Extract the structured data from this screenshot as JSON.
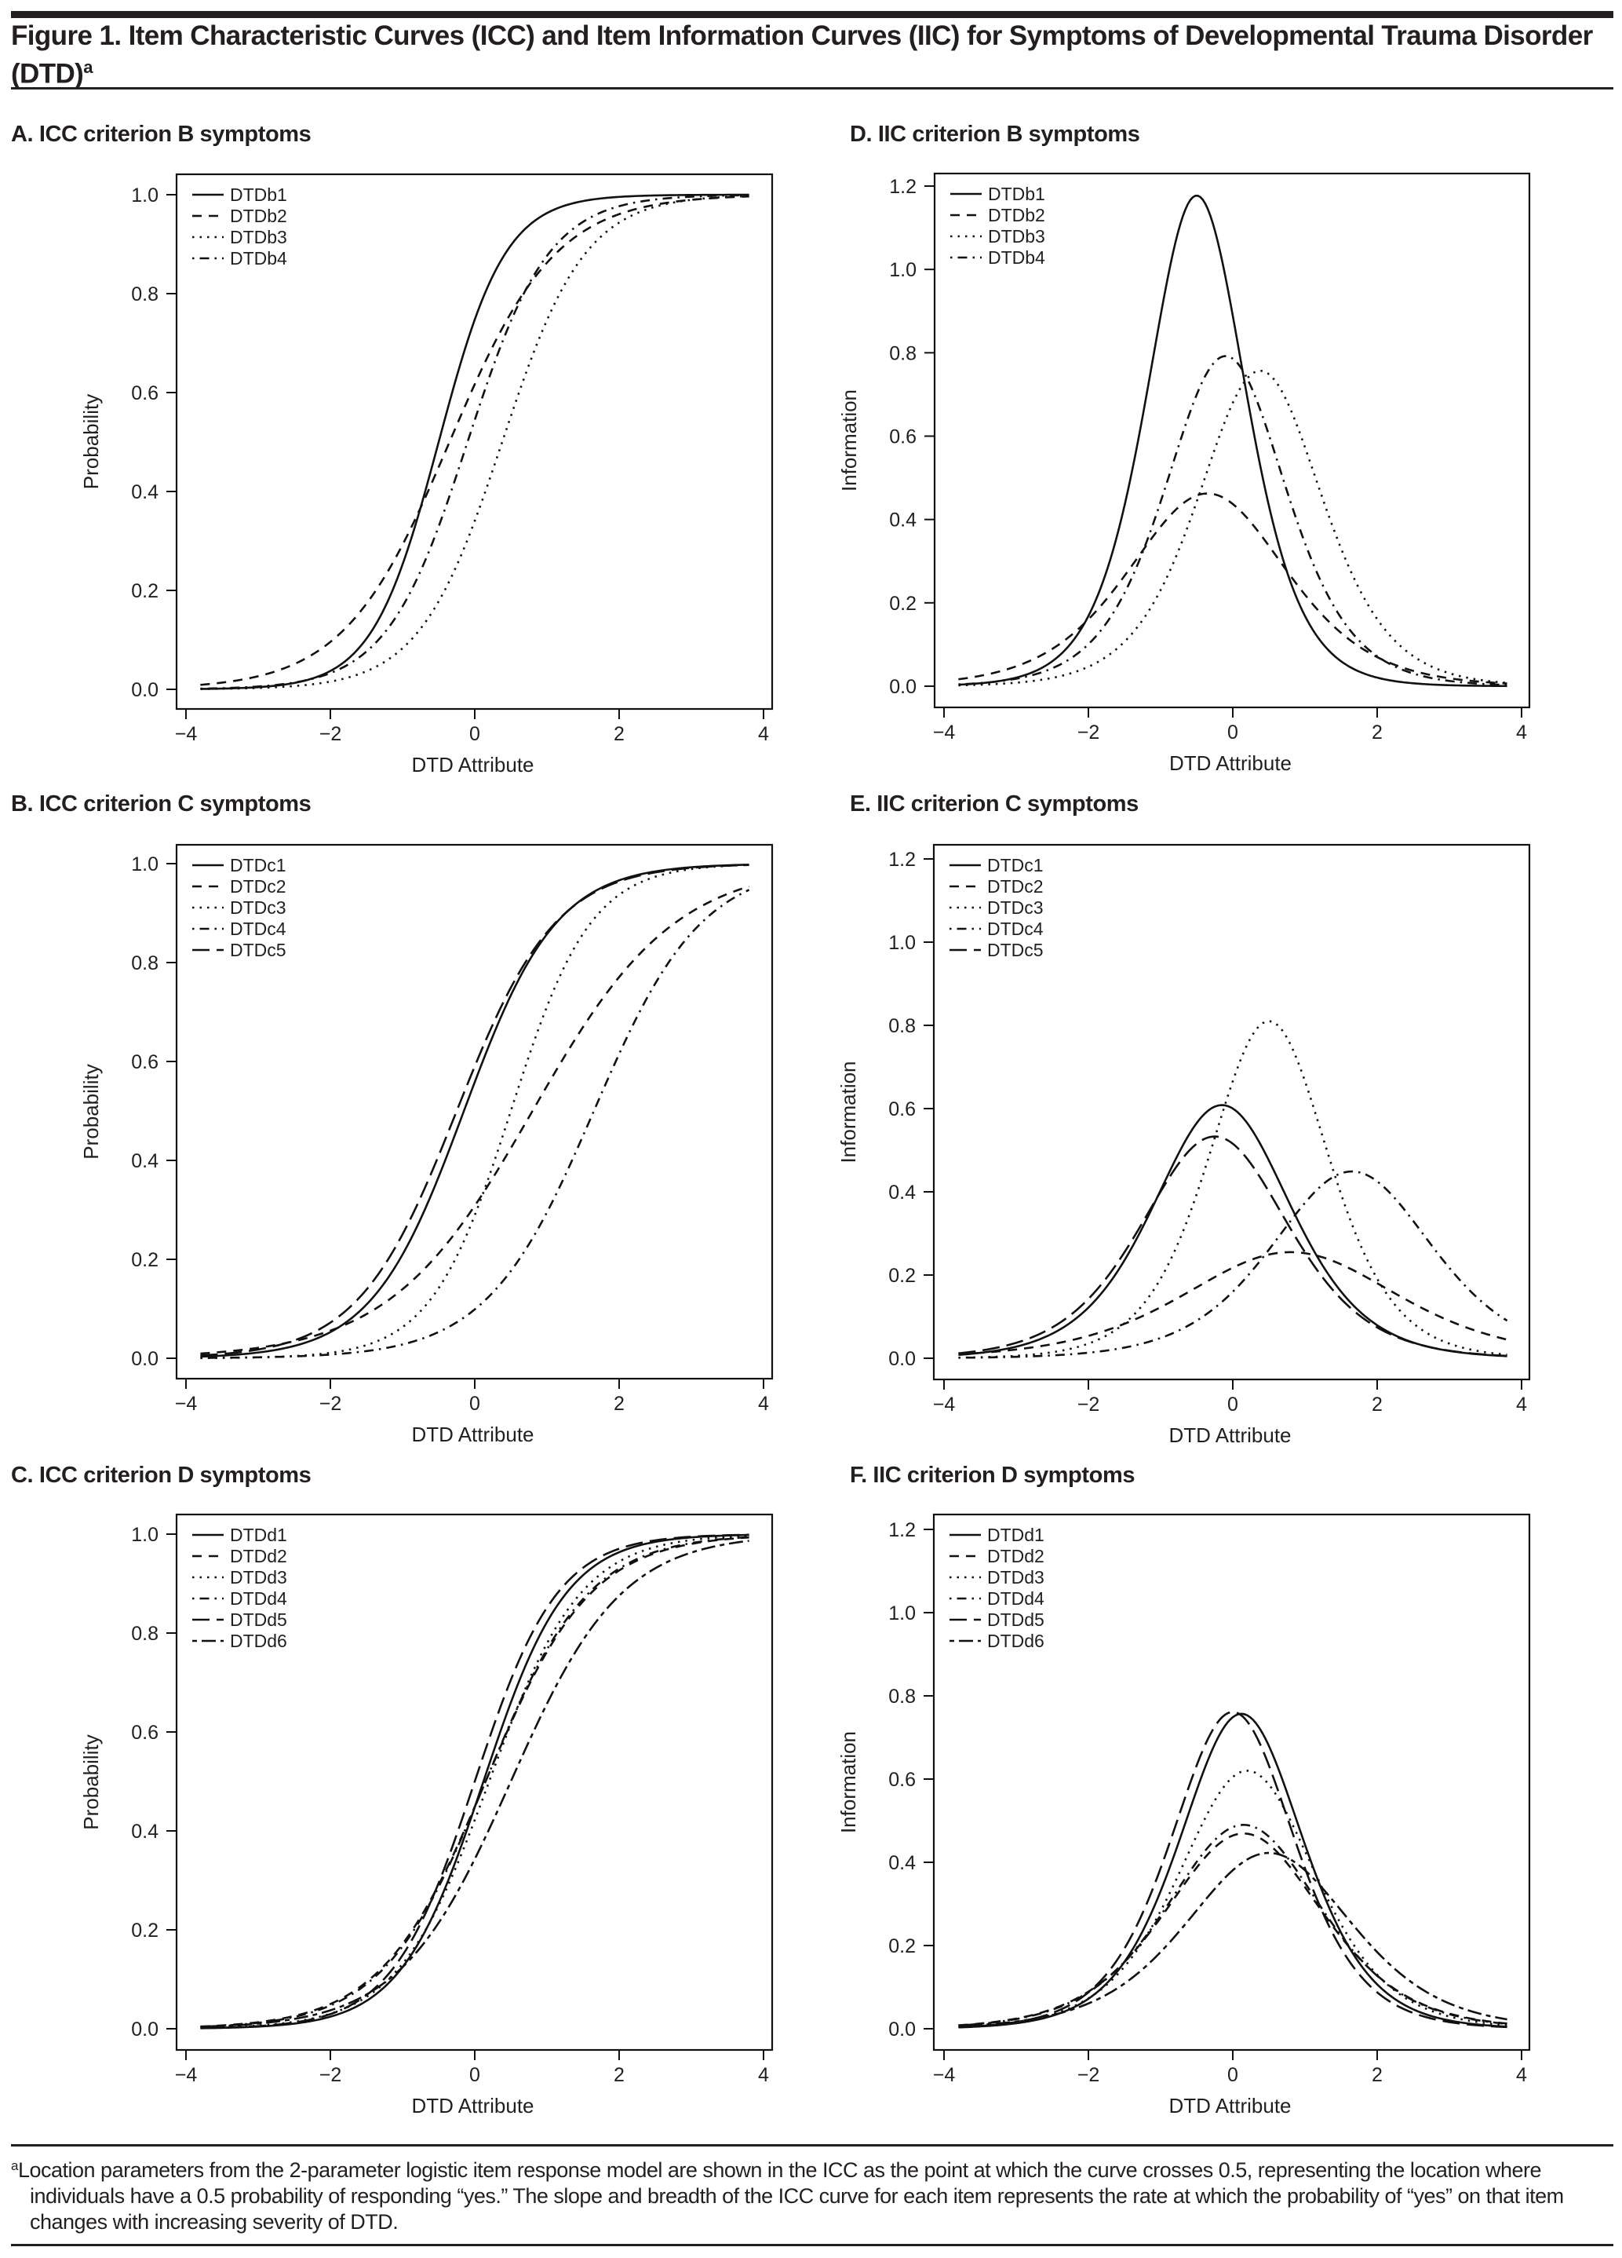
{
  "figure": {
    "title": "Figure 1. Item Characteristic Curves (ICC) and Item Information Curves (IIC) for Symptoms of Developmental Trauma Disorder (DTD)",
    "title_superscript": "a",
    "footnote_marker": "a",
    "footnote": "Location parameters from the 2-parameter logistic item response model are shown in the ICC as the point at which the curve crosses 0.5, representing the location where individuals have a 0.5 probability of responding “yes.” The slope and breadth of the ICC curve for each item represents the rate at which the probability of “yes” on that item changes with increasing severity of DTD."
  },
  "chart_data": [
    {
      "id": "A",
      "type": "line",
      "title": "A. ICC criterion B symptoms",
      "xlabel": "DTD Attribute",
      "ylabel": "Probability",
      "xlim": [
        -4,
        4
      ],
      "ylim": [
        0,
        1.0
      ],
      "xticks": [
        "−4",
        "−2",
        "0",
        "2",
        "4"
      ],
      "yticks": [
        "0.0",
        "0.2",
        "0.4",
        "0.6",
        "0.8",
        "1.0"
      ],
      "xtick_values": [
        -4,
        -2,
        0,
        2,
        4
      ],
      "ytick_values": [
        0,
        0.2,
        0.4,
        0.6,
        0.8,
        1.0
      ],
      "x_range_plotted": [
        -3.8,
        3.8
      ],
      "grid": false,
      "legend_position": "top-left",
      "curve_kind": "icc",
      "series": [
        {
          "name": "DTDb1",
          "line_style": "solid",
          "slope_a": 2.17,
          "location_b": -0.5
        },
        {
          "name": "DTDb2",
          "line_style": "dashed",
          "slope_a": 1.36,
          "location_b": -0.35
        },
        {
          "name": "DTDb3",
          "line_style": "dotted",
          "slope_a": 1.74,
          "location_b": 0.38
        },
        {
          "name": "DTDb4",
          "line_style": "dotdash",
          "slope_a": 1.78,
          "location_b": -0.1
        }
      ]
    },
    {
      "id": "B",
      "type": "line",
      "title": "B. ICC criterion C symptoms",
      "xlabel": "DTD Attribute",
      "ylabel": "Probability",
      "xlim": [
        -4,
        4
      ],
      "ylim": [
        0,
        1.0
      ],
      "xticks": [
        "−4",
        "−2",
        "0",
        "2",
        "4"
      ],
      "yticks": [
        "0.0",
        "0.2",
        "0.4",
        "0.6",
        "0.8",
        "1.0"
      ],
      "xtick_values": [
        -4,
        -2,
        0,
        2,
        4
      ],
      "ytick_values": [
        0,
        0.2,
        0.4,
        0.6,
        0.8,
        1.0
      ],
      "x_range_plotted": [
        -3.8,
        3.8
      ],
      "grid": false,
      "legend_position": "top-left",
      "curve_kind": "icc",
      "series": [
        {
          "name": "DTDc1",
          "line_style": "solid",
          "slope_a": 1.56,
          "location_b": -0.15
        },
        {
          "name": "DTDc2",
          "line_style": "dashed",
          "slope_a": 1.01,
          "location_b": 0.8
        },
        {
          "name": "DTDc3",
          "line_style": "dotted",
          "slope_a": 1.8,
          "location_b": 0.5
        },
        {
          "name": "DTDc4",
          "line_style": "dotdash",
          "slope_a": 1.34,
          "location_b": 1.65
        },
        {
          "name": "DTDc5",
          "line_style": "longdash",
          "slope_a": 1.46,
          "location_b": -0.25
        }
      ]
    },
    {
      "id": "C",
      "type": "line",
      "title": "C. ICC criterion D symptoms",
      "xlabel": "DTD Attribute",
      "ylabel": "Probability",
      "xlim": [
        -4,
        4
      ],
      "ylim": [
        0,
        1.0
      ],
      "xticks": [
        "−4",
        "−2",
        "0",
        "2",
        "4"
      ],
      "yticks": [
        "0.0",
        "0.2",
        "0.4",
        "0.6",
        "0.8",
        "1.0"
      ],
      "xtick_values": [
        -4,
        -2,
        0,
        2,
        4
      ],
      "ytick_values": [
        0,
        0.2,
        0.4,
        0.6,
        0.8,
        1.0
      ],
      "x_range_plotted": [
        -3.8,
        3.8
      ],
      "grid": false,
      "legend_position": "top-left",
      "curve_kind": "icc",
      "series": [
        {
          "name": "DTDd1",
          "line_style": "solid",
          "slope_a": 1.74,
          "location_b": 0.12
        },
        {
          "name": "DTDd2",
          "line_style": "dashed",
          "slope_a": 1.37,
          "location_b": 0.15
        },
        {
          "name": "DTDd3",
          "line_style": "dotted",
          "slope_a": 1.575,
          "location_b": 0.2
        },
        {
          "name": "DTDd4",
          "line_style": "dotdash",
          "slope_a": 1.4,
          "location_b": 0.15
        },
        {
          "name": "DTDd5",
          "line_style": "longdash",
          "slope_a": 1.745,
          "location_b": 0.0
        },
        {
          "name": "DTDd6",
          "line_style": "twodash",
          "slope_a": 1.3,
          "location_b": 0.5
        }
      ]
    },
    {
      "id": "D",
      "type": "line",
      "title": "D. IIC criterion B symptoms",
      "xlabel": "DTD Attribute",
      "ylabel": "Information",
      "xlim": [
        -4,
        4
      ],
      "ylim": [
        0,
        1.2
      ],
      "xticks": [
        "−4",
        "−2",
        "0",
        "2",
        "4"
      ],
      "yticks": [
        "0.0",
        "0.2",
        "0.4",
        "0.6",
        "0.8",
        "1.0",
        "1.2"
      ],
      "xtick_values": [
        -4,
        -2,
        0,
        2,
        4
      ],
      "ytick_values": [
        0,
        0.2,
        0.4,
        0.6,
        0.8,
        1.0,
        1.2
      ],
      "x_range_plotted": [
        -3.8,
        3.8
      ],
      "grid": false,
      "legend_position": "top-left",
      "curve_kind": "iic",
      "series": [
        {
          "name": "DTDb1",
          "line_style": "solid",
          "slope_a": 2.17,
          "location_b": -0.5,
          "peak_information": 1.18
        },
        {
          "name": "DTDb2",
          "line_style": "dashed",
          "slope_a": 1.36,
          "location_b": -0.35,
          "peak_information": 0.46
        },
        {
          "name": "DTDb3",
          "line_style": "dotted",
          "slope_a": 1.74,
          "location_b": 0.38,
          "peak_information": 0.76
        },
        {
          "name": "DTDb4",
          "line_style": "dotdash",
          "slope_a": 1.78,
          "location_b": -0.1,
          "peak_information": 0.79
        }
      ]
    },
    {
      "id": "E",
      "type": "line",
      "title": "E. IIC criterion C symptoms",
      "xlabel": "DTD Attribute",
      "ylabel": "Information",
      "xlim": [
        -4,
        4
      ],
      "ylim": [
        0,
        1.2
      ],
      "xticks": [
        "−4",
        "−2",
        "0",
        "2",
        "4"
      ],
      "yticks": [
        "0.0",
        "0.2",
        "0.4",
        "0.6",
        "0.8",
        "1.0",
        "1.2"
      ],
      "xtick_values": [
        -4,
        -2,
        0,
        2,
        4
      ],
      "ytick_values": [
        0,
        0.2,
        0.4,
        0.6,
        0.8,
        1.0,
        1.2
      ],
      "x_range_plotted": [
        -3.8,
        3.8
      ],
      "grid": false,
      "legend_position": "top-left",
      "curve_kind": "iic",
      "series": [
        {
          "name": "DTDc1",
          "line_style": "solid",
          "slope_a": 1.56,
          "location_b": -0.15,
          "peak_information": 0.605
        },
        {
          "name": "DTDc2",
          "line_style": "dashed",
          "slope_a": 1.01,
          "location_b": 0.8,
          "peak_information": 0.255
        },
        {
          "name": "DTDc3",
          "line_style": "dotted",
          "slope_a": 1.8,
          "location_b": 0.5,
          "peak_information": 0.81
        },
        {
          "name": "DTDc4",
          "line_style": "dotdash",
          "slope_a": 1.34,
          "location_b": 1.65,
          "peak_information": 0.45
        },
        {
          "name": "DTDc5",
          "line_style": "longdash",
          "slope_a": 1.46,
          "location_b": -0.25,
          "peak_information": 0.535
        }
      ]
    },
    {
      "id": "F",
      "type": "line",
      "title": "F. IIC criterion D symptoms",
      "xlabel": "DTD Attribute",
      "ylabel": "Information",
      "xlim": [
        -4,
        4
      ],
      "ylim": [
        0,
        1.2
      ],
      "xticks": [
        "−4",
        "−2",
        "0",
        "2",
        "4"
      ],
      "yticks": [
        "0.0",
        "0.2",
        "0.4",
        "0.6",
        "0.8",
        "1.0",
        "1.2"
      ],
      "xtick_values": [
        -4,
        -2,
        0,
        2,
        4
      ],
      "ytick_values": [
        0,
        0.2,
        0.4,
        0.6,
        0.8,
        1.0,
        1.2
      ],
      "x_range_plotted": [
        -3.8,
        3.8
      ],
      "grid": false,
      "legend_position": "top-left",
      "curve_kind": "iic",
      "series": [
        {
          "name": "DTDd1",
          "line_style": "solid",
          "slope_a": 1.74,
          "location_b": 0.12,
          "peak_information": 0.755
        },
        {
          "name": "DTDd2",
          "line_style": "dashed",
          "slope_a": 1.37,
          "location_b": 0.15,
          "peak_information": 0.47
        },
        {
          "name": "DTDd3",
          "line_style": "dotted",
          "slope_a": 1.575,
          "location_b": 0.2,
          "peak_information": 0.62
        },
        {
          "name": "DTDd4",
          "line_style": "dotdash",
          "slope_a": 1.4,
          "location_b": 0.15,
          "peak_information": 0.49
        },
        {
          "name": "DTDd5",
          "line_style": "longdash",
          "slope_a": 1.745,
          "location_b": 0.0,
          "peak_information": 0.76
        },
        {
          "name": "DTDd6",
          "line_style": "twodash",
          "slope_a": 1.3,
          "location_b": 0.5,
          "peak_information": 0.425
        }
      ]
    }
  ]
}
